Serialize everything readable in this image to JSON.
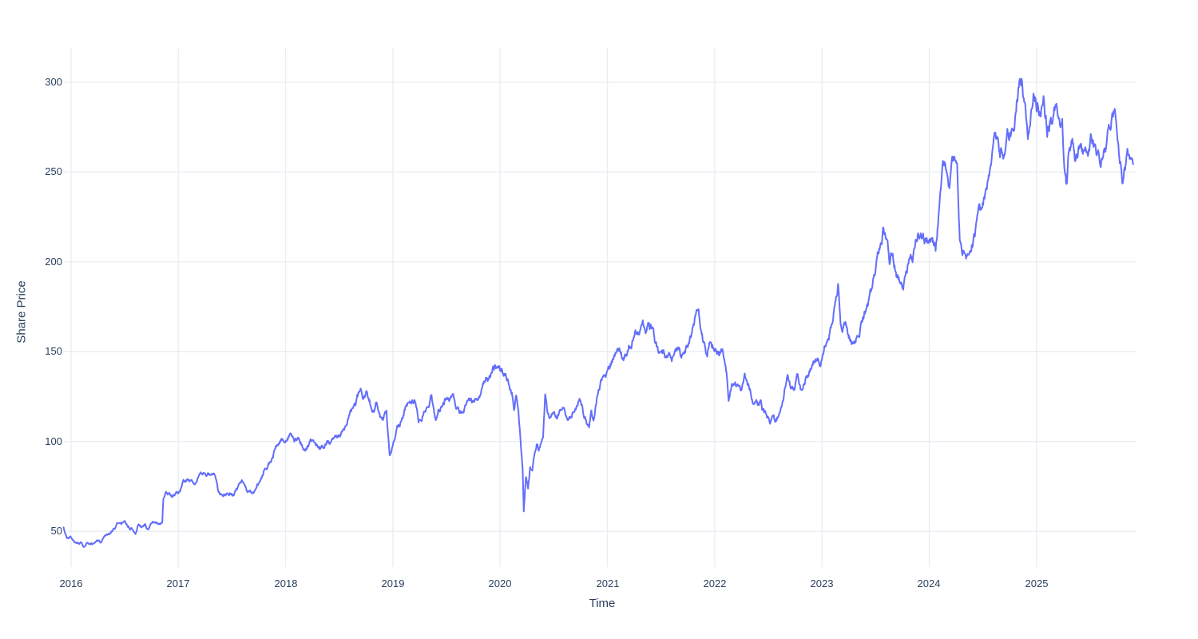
{
  "chart": {
    "background": "#FFFFFF",
    "line_color": "#636EFA",
    "grid_color": "#E8EDF2",
    "label_color": "#2a3f5f"
  },
  "chart_data": {
    "type": "line",
    "title": "",
    "xlabel": "Time",
    "ylabel": "Share Price",
    "legend": false,
    "grid": true,
    "x_ticks": [
      2016,
      2017,
      2018,
      2019,
      2020,
      2021,
      2022,
      2023,
      2024,
      2025
    ],
    "y_ticks": [
      50,
      100,
      150,
      200,
      250,
      300
    ],
    "xlim": [
      2015.933,
      2025.977
    ],
    "ylim": [
      30.1,
      319.1
    ],
    "points": [
      [
        2015.93,
        52
      ],
      [
        2015.96,
        47
      ],
      [
        2015.99,
        48
      ],
      [
        2016.02,
        45
      ],
      [
        2016.05,
        43
      ],
      [
        2016.09,
        44
      ],
      [
        2016.12,
        41
      ],
      [
        2016.15,
        43
      ],
      [
        2016.18,
        41
      ],
      [
        2016.21,
        42
      ],
      [
        2016.24,
        44
      ],
      [
        2016.28,
        43
      ],
      [
        2016.32,
        45
      ],
      [
        2016.36,
        47
      ],
      [
        2016.4,
        51
      ],
      [
        2016.44,
        55
      ],
      [
        2016.47,
        54
      ],
      [
        2016.5,
        56
      ],
      [
        2016.53,
        53
      ],
      [
        2016.57,
        52
      ],
      [
        2016.6,
        51
      ],
      [
        2016.63,
        55
      ],
      [
        2016.66,
        54
      ],
      [
        2016.69,
        55
      ],
      [
        2016.72,
        52
      ],
      [
        2016.75,
        54
      ],
      [
        2016.78,
        55
      ],
      [
        2016.81,
        54
      ],
      [
        2016.83,
        53
      ],
      [
        2016.85,
        54
      ],
      [
        2016.86,
        67
      ],
      [
        2016.88,
        69
      ],
      [
        2016.91,
        70
      ],
      [
        2016.94,
        68
      ],
      [
        2016.97,
        69
      ],
      [
        2017.0,
        70
      ],
      [
        2017.04,
        74
      ],
      [
        2017.08,
        76
      ],
      [
        2017.12,
        78
      ],
      [
        2017.16,
        79
      ],
      [
        2017.2,
        80
      ],
      [
        2017.25,
        81
      ],
      [
        2017.3,
        81
      ],
      [
        2017.34,
        82
      ],
      [
        2017.37,
        74
      ],
      [
        2017.4,
        72
      ],
      [
        2017.44,
        74
      ],
      [
        2017.48,
        76
      ],
      [
        2017.52,
        74
      ],
      [
        2017.56,
        76
      ],
      [
        2017.6,
        79
      ],
      [
        2017.64,
        73
      ],
      [
        2017.68,
        72
      ],
      [
        2017.72,
        75
      ],
      [
        2017.76,
        79
      ],
      [
        2017.8,
        83
      ],
      [
        2017.84,
        87
      ],
      [
        2017.87,
        90
      ],
      [
        2017.9,
        95
      ],
      [
        2017.93,
        98
      ],
      [
        2017.96,
        100
      ],
      [
        2018.0,
        103
      ],
      [
        2018.04,
        105
      ],
      [
        2018.08,
        98
      ],
      [
        2018.12,
        101
      ],
      [
        2018.16,
        97
      ],
      [
        2018.2,
        96
      ],
      [
        2018.24,
        99
      ],
      [
        2018.28,
        96
      ],
      [
        2018.32,
        97
      ],
      [
        2018.36,
        96
      ],
      [
        2018.4,
        99
      ],
      [
        2018.44,
        101
      ],
      [
        2018.48,
        103
      ],
      [
        2018.52,
        106
      ],
      [
        2018.56,
        111
      ],
      [
        2018.6,
        117
      ],
      [
        2018.64,
        121
      ],
      [
        2018.68,
        125
      ],
      [
        2018.7,
        127
      ],
      [
        2018.73,
        123
      ],
      [
        2018.76,
        126
      ],
      [
        2018.79,
        121
      ],
      [
        2018.82,
        117
      ],
      [
        2018.85,
        121
      ],
      [
        2018.88,
        115
      ],
      [
        2018.91,
        113
      ],
      [
        2018.94,
        116
      ],
      [
        2018.97,
        92
      ],
      [
        2019.0,
        96
      ],
      [
        2019.04,
        104
      ],
      [
        2019.08,
        110
      ],
      [
        2019.12,
        116
      ],
      [
        2019.16,
        121
      ],
      [
        2019.2,
        125
      ],
      [
        2019.24,
        114
      ],
      [
        2019.28,
        120
      ],
      [
        2019.32,
        127
      ],
      [
        2019.36,
        131
      ],
      [
        2019.4,
        116
      ],
      [
        2019.44,
        121
      ],
      [
        2019.48,
        126
      ],
      [
        2019.52,
        128
      ],
      [
        2019.56,
        123
      ],
      [
        2019.6,
        117
      ],
      [
        2019.64,
        116
      ],
      [
        2019.68,
        121
      ],
      [
        2019.72,
        124
      ],
      [
        2019.76,
        120
      ],
      [
        2019.8,
        123
      ],
      [
        2019.84,
        128
      ],
      [
        2019.88,
        131
      ],
      [
        2019.92,
        134
      ],
      [
        2019.95,
        138
      ],
      [
        2019.98,
        134
      ],
      [
        2020.02,
        135
      ],
      [
        2020.05,
        137
      ],
      [
        2020.08,
        134
      ],
      [
        2020.11,
        130
      ],
      [
        2020.13,
        120
      ],
      [
        2020.15,
        128
      ],
      [
        2020.17,
        120
      ],
      [
        2020.19,
        103
      ],
      [
        2020.21,
        85
      ],
      [
        2020.22,
        62
      ],
      [
        2020.24,
        80
      ],
      [
        2020.26,
        74
      ],
      [
        2020.28,
        88
      ],
      [
        2020.3,
        84
      ],
      [
        2020.32,
        95
      ],
      [
        2020.34,
        99
      ],
      [
        2020.36,
        97
      ],
      [
        2020.38,
        103
      ],
      [
        2020.4,
        107
      ],
      [
        2020.42,
        131
      ],
      [
        2020.44,
        118
      ],
      [
        2020.46,
        112
      ],
      [
        2020.48,
        115
      ],
      [
        2020.5,
        113
      ],
      [
        2020.53,
        110
      ],
      [
        2020.56,
        114
      ],
      [
        2020.59,
        118
      ],
      [
        2020.62,
        115
      ],
      [
        2020.65,
        112
      ],
      [
        2020.68,
        117
      ],
      [
        2020.71,
        122
      ],
      [
        2020.74,
        125
      ],
      [
        2020.77,
        119
      ],
      [
        2020.8,
        113
      ],
      [
        2020.83,
        109
      ],
      [
        2020.85,
        115
      ],
      [
        2020.87,
        111
      ],
      [
        2020.9,
        124
      ],
      [
        2020.93,
        130
      ],
      [
        2020.96,
        136
      ],
      [
        2021.0,
        137
      ],
      [
        2021.04,
        142
      ],
      [
        2021.08,
        147
      ],
      [
        2021.12,
        150
      ],
      [
        2021.15,
        146
      ],
      [
        2021.18,
        150
      ],
      [
        2021.22,
        154
      ],
      [
        2021.26,
        158
      ],
      [
        2021.3,
        161
      ],
      [
        2021.33,
        164
      ],
      [
        2021.36,
        159
      ],
      [
        2021.39,
        162
      ],
      [
        2021.42,
        160
      ],
      [
        2021.45,
        150
      ],
      [
        2021.48,
        146
      ],
      [
        2021.51,
        151
      ],
      [
        2021.54,
        148
      ],
      [
        2021.57,
        150
      ],
      [
        2021.6,
        147
      ],
      [
        2021.63,
        150
      ],
      [
        2021.66,
        152
      ],
      [
        2021.69,
        148
      ],
      [
        2021.72,
        151
      ],
      [
        2021.75,
        155
      ],
      [
        2021.78,
        161
      ],
      [
        2021.81,
        168
      ],
      [
        2021.83,
        177
      ],
      [
        2021.85,
        172
      ],
      [
        2021.87,
        165
      ],
      [
        2021.89,
        158
      ],
      [
        2021.91,
        152
      ],
      [
        2021.93,
        149
      ],
      [
        2021.95,
        153
      ],
      [
        2021.97,
        155
      ],
      [
        2022.0,
        154
      ],
      [
        2022.03,
        150
      ],
      [
        2022.06,
        153
      ],
      [
        2022.09,
        149
      ],
      [
        2022.11,
        140
      ],
      [
        2022.13,
        126
      ],
      [
        2022.16,
        131
      ],
      [
        2022.19,
        135
      ],
      [
        2022.22,
        132
      ],
      [
        2022.25,
        129
      ],
      [
        2022.28,
        134
      ],
      [
        2022.31,
        128
      ],
      [
        2022.34,
        125
      ],
      [
        2022.37,
        121
      ],
      [
        2022.4,
        118
      ],
      [
        2022.43,
        122
      ],
      [
        2022.46,
        117
      ],
      [
        2022.49,
        114
      ],
      [
        2022.52,
        112
      ],
      [
        2022.55,
        116
      ],
      [
        2022.57,
        111
      ],
      [
        2022.6,
        114
      ],
      [
        2022.63,
        121
      ],
      [
        2022.66,
        130
      ],
      [
        2022.68,
        137
      ],
      [
        2022.71,
        128
      ],
      [
        2022.74,
        125
      ],
      [
        2022.77,
        131
      ],
      [
        2022.8,
        123
      ],
      [
        2022.83,
        127
      ],
      [
        2022.86,
        133
      ],
      [
        2022.89,
        139
      ],
      [
        2022.92,
        143
      ],
      [
        2022.95,
        146
      ],
      [
        2022.98,
        144
      ],
      [
        2023.01,
        148
      ],
      [
        2023.04,
        155
      ],
      [
        2023.08,
        166
      ],
      [
        2023.12,
        180
      ],
      [
        2023.15,
        192
      ],
      [
        2023.17,
        174
      ],
      [
        2023.19,
        162
      ],
      [
        2023.22,
        165
      ],
      [
        2023.25,
        160
      ],
      [
        2023.28,
        156
      ],
      [
        2023.31,
        160
      ],
      [
        2023.34,
        164
      ],
      [
        2023.37,
        168
      ],
      [
        2023.4,
        171
      ],
      [
        2023.43,
        174
      ],
      [
        2023.46,
        178
      ],
      [
        2023.49,
        185
      ],
      [
        2023.52,
        196
      ],
      [
        2023.55,
        207
      ],
      [
        2023.57,
        215
      ],
      [
        2023.6,
        209
      ],
      [
        2023.63,
        201
      ],
      [
        2023.66,
        206
      ],
      [
        2023.69,
        197
      ],
      [
        2023.72,
        191
      ],
      [
        2023.75,
        189
      ],
      [
        2023.78,
        196
      ],
      [
        2023.81,
        202
      ],
      [
        2023.84,
        198
      ],
      [
        2023.87,
        204
      ],
      [
        2023.9,
        209
      ],
      [
        2023.93,
        206
      ],
      [
        2023.96,
        204
      ],
      [
        2024.0,
        207
      ],
      [
        2024.03,
        213
      ],
      [
        2024.06,
        209
      ],
      [
        2024.09,
        228
      ],
      [
        2024.12,
        246
      ],
      [
        2024.15,
        251
      ],
      [
        2024.18,
        247
      ],
      [
        2024.21,
        252
      ],
      [
        2024.24,
        249
      ],
      [
        2024.26,
        254
      ],
      [
        2024.285,
        213
      ],
      [
        2024.31,
        208
      ],
      [
        2024.34,
        214
      ],
      [
        2024.37,
        209
      ],
      [
        2024.4,
        213
      ],
      [
        2024.43,
        220
      ],
      [
        2024.46,
        230
      ],
      [
        2024.49,
        224
      ],
      [
        2024.52,
        235
      ],
      [
        2024.55,
        245
      ],
      [
        2024.58,
        252
      ],
      [
        2024.61,
        258
      ],
      [
        2024.64,
        261
      ],
      [
        2024.66,
        255
      ],
      [
        2024.69,
        262
      ],
      [
        2024.72,
        267
      ],
      [
        2024.75,
        270
      ],
      [
        2024.78,
        274
      ],
      [
        2024.81,
        282
      ],
      [
        2024.84,
        297
      ],
      [
        2024.865,
        304
      ],
      [
        2024.89,
        286
      ],
      [
        2024.92,
        271
      ],
      [
        2024.95,
        284
      ],
      [
        2024.98,
        295
      ],
      [
        2025.01,
        289
      ],
      [
        2025.04,
        282
      ],
      [
        2025.07,
        288
      ],
      [
        2025.1,
        278
      ],
      [
        2025.13,
        285
      ],
      [
        2025.16,
        280
      ],
      [
        2025.19,
        289
      ],
      [
        2025.22,
        287
      ],
      [
        2025.24,
        291
      ],
      [
        2025.26,
        258
      ],
      [
        2025.28,
        246
      ],
      [
        2025.3,
        262
      ],
      [
        2025.33,
        268
      ],
      [
        2025.36,
        259
      ],
      [
        2025.39,
        264
      ],
      [
        2025.42,
        270
      ],
      [
        2025.45,
        263
      ],
      [
        2025.48,
        267
      ],
      [
        2025.51,
        272
      ],
      [
        2025.54,
        265
      ],
      [
        2025.57,
        260
      ],
      [
        2025.6,
        255
      ],
      [
        2025.63,
        262
      ],
      [
        2025.66,
        267
      ],
      [
        2025.69,
        272
      ],
      [
        2025.71,
        280
      ],
      [
        2025.73,
        287
      ],
      [
        2025.76,
        272
      ],
      [
        2025.78,
        262
      ],
      [
        2025.8,
        252
      ],
      [
        2025.83,
        257
      ],
      [
        2025.86,
        263
      ],
      [
        2025.88,
        254
      ],
      [
        2025.9,
        258
      ]
    ]
  }
}
